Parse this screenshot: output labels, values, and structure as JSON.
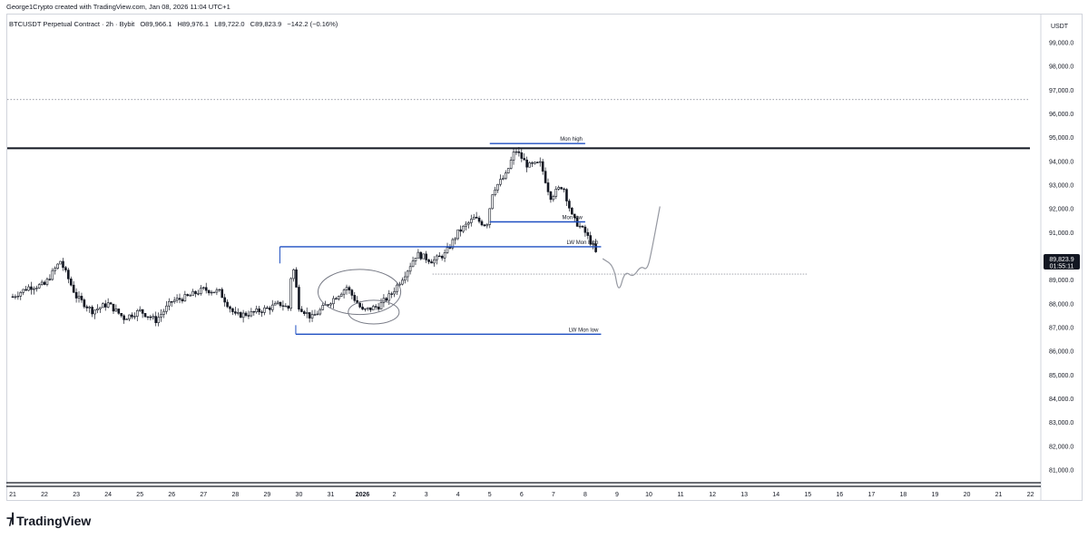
{
  "header": {
    "credit": "George1Crypto created with TradingView.com, Jan 08, 2026 11:04 UTC+1",
    "symbol": "BTCUSDT Perpetual Contract · 2h · Bybit",
    "open": "O89,966.1",
    "high": "H89,976.1",
    "low": "L89,722.0",
    "close": "C89,823.9",
    "change": "−142.2 (−0.16%)"
  },
  "price_axis": {
    "currency": "USDT",
    "current_price": "89,823.9",
    "countdown": "01:55:11"
  },
  "footer": {
    "brand": "TradingView"
  },
  "colors": {
    "candle": "#131722",
    "level_line": "#1e4fc2",
    "resistance": "#131722",
    "projection": "#9598a1",
    "circle": "#787b86",
    "price_label_bg": "#131722"
  },
  "chart_data": {
    "type": "candlestick",
    "ylim": [
      80500,
      100000
    ],
    "y_ticks": [
      81000,
      82000,
      83000,
      84000,
      85000,
      86000,
      87000,
      88000,
      89000,
      90000,
      91000,
      92000,
      93000,
      94000,
      95000,
      96000,
      97000,
      98000,
      99000
    ],
    "y_tick_labels": [
      "81,000.0",
      "82,000.0",
      "83,000.0",
      "84,000.0",
      "85,000.0",
      "86,000.0",
      "87,000.0",
      "88,000.0",
      "89,000.0",
      "90,000.0",
      "91,000.0",
      "92,000.0",
      "93,000.0",
      "94,000.0",
      "95,000.0",
      "96,000.0",
      "97,000.0",
      "98,000.0",
      "99,000.0"
    ],
    "x_tick_labels": [
      "21",
      "22",
      "23",
      "24",
      "25",
      "26",
      "27",
      "28",
      "29",
      "30",
      "31",
      "2026",
      "2",
      "3",
      "4",
      "5",
      "6",
      "7",
      "8",
      "9",
      "10",
      "11",
      "12",
      "13",
      "14",
      "15",
      "16",
      "17",
      "18",
      "19",
      "20",
      "21",
      "22"
    ],
    "day_anchors": [
      {
        "day": 0,
        "price": 88300
      },
      {
        "day": 0.5,
        "price": 88700
      },
      {
        "day": 1,
        "price": 88800
      },
      {
        "day": 1.5,
        "price": 89800
      },
      {
        "day": 2,
        "price": 88300
      },
      {
        "day": 2.5,
        "price": 87700
      },
      {
        "day": 3,
        "price": 88000
      },
      {
        "day": 3.5,
        "price": 87400
      },
      {
        "day": 4,
        "price": 87700
      },
      {
        "day": 4.5,
        "price": 87300
      },
      {
        "day": 5,
        "price": 88100
      },
      {
        "day": 5.5,
        "price": 88300
      },
      {
        "day": 6,
        "price": 88600
      },
      {
        "day": 6.5,
        "price": 88500
      },
      {
        "day": 7,
        "price": 87500
      },
      {
        "day": 7.5,
        "price": 87600
      },
      {
        "day": 8,
        "price": 87800
      },
      {
        "day": 8.4,
        "price": 88000
      },
      {
        "day": 8.7,
        "price": 87800
      },
      {
        "day": 8.78,
        "price": 89900
      },
      {
        "day": 9,
        "price": 87900
      },
      {
        "day": 9.4,
        "price": 87400
      },
      {
        "day": 9.9,
        "price": 88000
      },
      {
        "day": 10.5,
        "price": 88700
      },
      {
        "day": 11,
        "price": 87700
      },
      {
        "day": 11.5,
        "price": 87900
      },
      {
        "day": 11.9,
        "price": 88400
      },
      {
        "day": 12.4,
        "price": 89400
      },
      {
        "day": 12.7,
        "price": 90100
      },
      {
        "day": 13.2,
        "price": 89800
      },
      {
        "day": 13.6,
        "price": 90100
      },
      {
        "day": 14,
        "price": 91000
      },
      {
        "day": 14.5,
        "price": 91600
      },
      {
        "day": 14.9,
        "price": 91300
      },
      {
        "day": 15.1,
        "price": 92800
      },
      {
        "day": 15.5,
        "price": 93400
      },
      {
        "day": 15.8,
        "price": 94500
      },
      {
        "day": 16.2,
        "price": 93800
      },
      {
        "day": 16.6,
        "price": 93900
      },
      {
        "day": 16.9,
        "price": 92500
      },
      {
        "day": 17.3,
        "price": 93000
      },
      {
        "day": 17.6,
        "price": 91600
      },
      {
        "day": 18.0,
        "price": 91000
      },
      {
        "day": 18.3,
        "price": 90300
      },
      {
        "day": 18.4,
        "price": 89823.9
      }
    ],
    "levels": [
      {
        "label": "Mon high",
        "price": 94750,
        "x_start_day": 15.0,
        "x_end_day": 18.0
      },
      {
        "label": "Mon low",
        "price": 91450,
        "x_start_day": 15.0,
        "x_end_day": 18.0
      },
      {
        "label": "LW Mon high",
        "price": 90400,
        "x_start_day": 8.4,
        "x_end_day": 18.5
      },
      {
        "label": "LW Mon low",
        "price": 86720,
        "x_start_day": 8.9,
        "x_end_day": 18.5
      }
    ],
    "resistance_price": 94550,
    "dotted_price": 96600,
    "dotted_current_price": 89250,
    "projection": [
      {
        "day": 18.55,
        "price": 89900
      },
      {
        "day": 18.9,
        "price": 89600
      },
      {
        "day": 19.05,
        "price": 88400
      },
      {
        "day": 19.25,
        "price": 89400
      },
      {
        "day": 19.5,
        "price": 89100
      },
      {
        "day": 19.75,
        "price": 89600
      },
      {
        "day": 19.95,
        "price": 89400
      },
      {
        "day": 20.1,
        "price": 90300
      },
      {
        "day": 20.35,
        "price": 92100
      }
    ],
    "ellipses": [
      {
        "cx_day": 10.9,
        "cy_price": 88500,
        "rx_days": 1.3,
        "ry_price": 950
      },
      {
        "cx_day": 11.35,
        "cy_price": 87650,
        "rx_days": 0.8,
        "ry_price": 500
      }
    ]
  }
}
